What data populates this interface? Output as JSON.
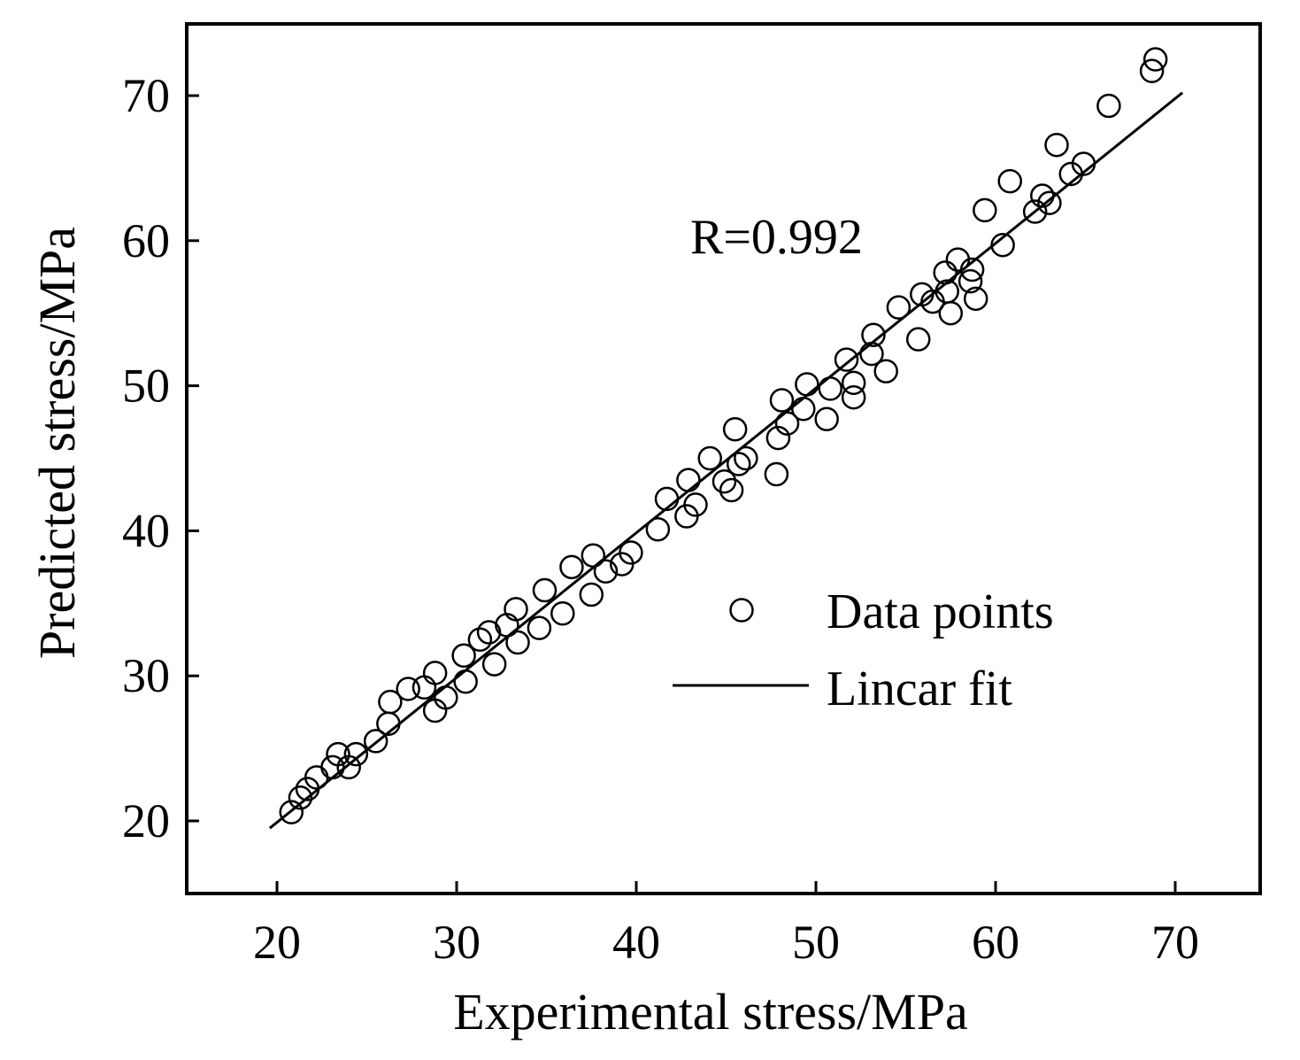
{
  "chart_data": {
    "type": "scatter",
    "title": "",
    "xlabel": "Experimental stress/MPa",
    "ylabel": "Predicted stress/MPa",
    "xlim": [
      15,
      75
    ],
    "ylim": [
      15,
      75
    ],
    "xticks": [
      20,
      30,
      40,
      50,
      60,
      70
    ],
    "yticks": [
      20,
      30,
      40,
      50,
      60,
      70
    ],
    "annotation": "R=0.992",
    "legend": {
      "position": "center-right",
      "entries": [
        {
          "label": "Data points",
          "marker": "open-circle"
        },
        {
          "label": "Lincar fit",
          "marker": "line"
        }
      ]
    },
    "series": [
      {
        "name": "Data points",
        "x": [
          20.8,
          21.3,
          21.7,
          22.2,
          23.1,
          23.4,
          24.0,
          24.4,
          25.5,
          26.3,
          26.2,
          27.3,
          28.2,
          28.8,
          28.8,
          29.4,
          30.4,
          30.5,
          31.3,
          31.8,
          32.1,
          32.8,
          33.3,
          33.4,
          34.6,
          34.9,
          35.9,
          36.4,
          37.5,
          37.6,
          38.3,
          39.2,
          39.7,
          41.2,
          41.7,
          42.8,
          42.9,
          43.3,
          44.1,
          44.9,
          45.3,
          45.5,
          45.7,
          46.1,
          47.8,
          47.9,
          48.1,
          48.4,
          49.3,
          49.5,
          50.6,
          50.8,
          51.7,
          52.1,
          52.1,
          53.2,
          53.1,
          53.9,
          54.6,
          55.7,
          55.9,
          56.5,
          57.2,
          57.3,
          57.5,
          57.9,
          58.6,
          58.7,
          58.9,
          59.4,
          60.4,
          60.8,
          62.2,
          62.6,
          63.0,
          63.4,
          64.2,
          64.9,
          66.3,
          68.7,
          68.9
        ],
        "y": [
          20.6,
          21.6,
          22.2,
          23.0,
          23.7,
          24.6,
          23.7,
          24.6,
          25.5,
          28.2,
          26.7,
          29.1,
          29.2,
          27.6,
          30.2,
          28.5,
          31.4,
          29.6,
          32.5,
          33.0,
          30.8,
          33.5,
          34.6,
          32.3,
          33.3,
          35.9,
          34.3,
          37.5,
          35.6,
          38.3,
          37.2,
          37.7,
          38.5,
          40.1,
          42.2,
          41.0,
          43.5,
          41.8,
          45.0,
          43.4,
          42.8,
          47.0,
          44.6,
          45.0,
          43.9,
          46.4,
          49.0,
          47.4,
          48.4,
          50.1,
          47.7,
          49.8,
          51.8,
          50.2,
          49.2,
          53.5,
          52.2,
          51.0,
          55.4,
          53.2,
          56.3,
          55.8,
          57.8,
          56.5,
          55.0,
          58.7,
          57.2,
          58.0,
          56.0,
          62.1,
          59.7,
          64.1,
          62.0,
          63.1,
          62.6,
          66.6,
          64.6,
          65.3,
          69.3,
          71.7,
          72.5
        ]
      },
      {
        "name": "Lincar fit",
        "x": [
          19.6,
          70.4
        ],
        "y": [
          19.5,
          70.2
        ]
      }
    ]
  }
}
